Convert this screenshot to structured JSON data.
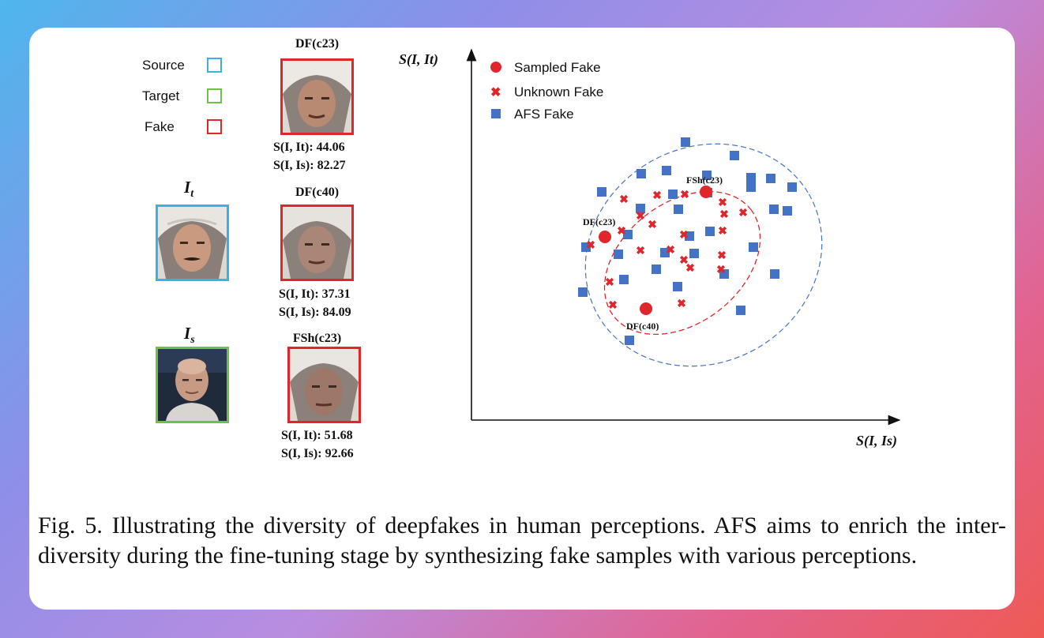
{
  "legend": {
    "source": {
      "label": "Source",
      "color": "#3bb0e8"
    },
    "target": {
      "label": "Target",
      "color": "#6fbf4a"
    },
    "fake": {
      "label": "Fake",
      "color": "#e0262b"
    }
  },
  "symbols": {
    "it_base": "I",
    "it_sub": "t",
    "is_base": "I",
    "is_sub": "s"
  },
  "fakes": [
    {
      "name": "DF(c23)",
      "sit_label": "S(I, It): ",
      "sit_value": "44.06",
      "sis_label": "S(I, Is): ",
      "sis_value": "82.27"
    },
    {
      "name": "DF(c40)",
      "sit_label": "S(I, It): ",
      "sit_value": "37.31",
      "sis_label": "S(I, Is): ",
      "sis_value": "84.09"
    },
    {
      "name": "FSh(c23)",
      "sit_label": "S(I, It): ",
      "sit_value": "51.68",
      "sis_label": "S(I, Is): ",
      "sis_value": "92.66"
    }
  ],
  "plot": {
    "ylabel": "S(I, It)",
    "xlabel": "S(I, Is)",
    "legend": [
      {
        "label": "Sampled Fake",
        "marker": "circle",
        "color": "#e0262b"
      },
      {
        "label": "Unknown Fake",
        "marker": "cross",
        "color": "#e0262b"
      },
      {
        "label": "AFS Fake",
        "marker": "square",
        "color": "#4472c4"
      }
    ],
    "point_labels": {
      "df_c23": "DF(c23)",
      "fsh_c23": "FSh(c23)",
      "df_c40": "DF(c40)"
    },
    "inner_ellipse_color": "#e0262b",
    "outer_ellipse_color": "#4472c4"
  },
  "caption": "Fig. 5.  Illustrating the diversity of deepfakes in human perceptions. AFS aims to enrich the inter-diversity during the fine-tuning stage by synthesizing fake samples with various perceptions."
}
